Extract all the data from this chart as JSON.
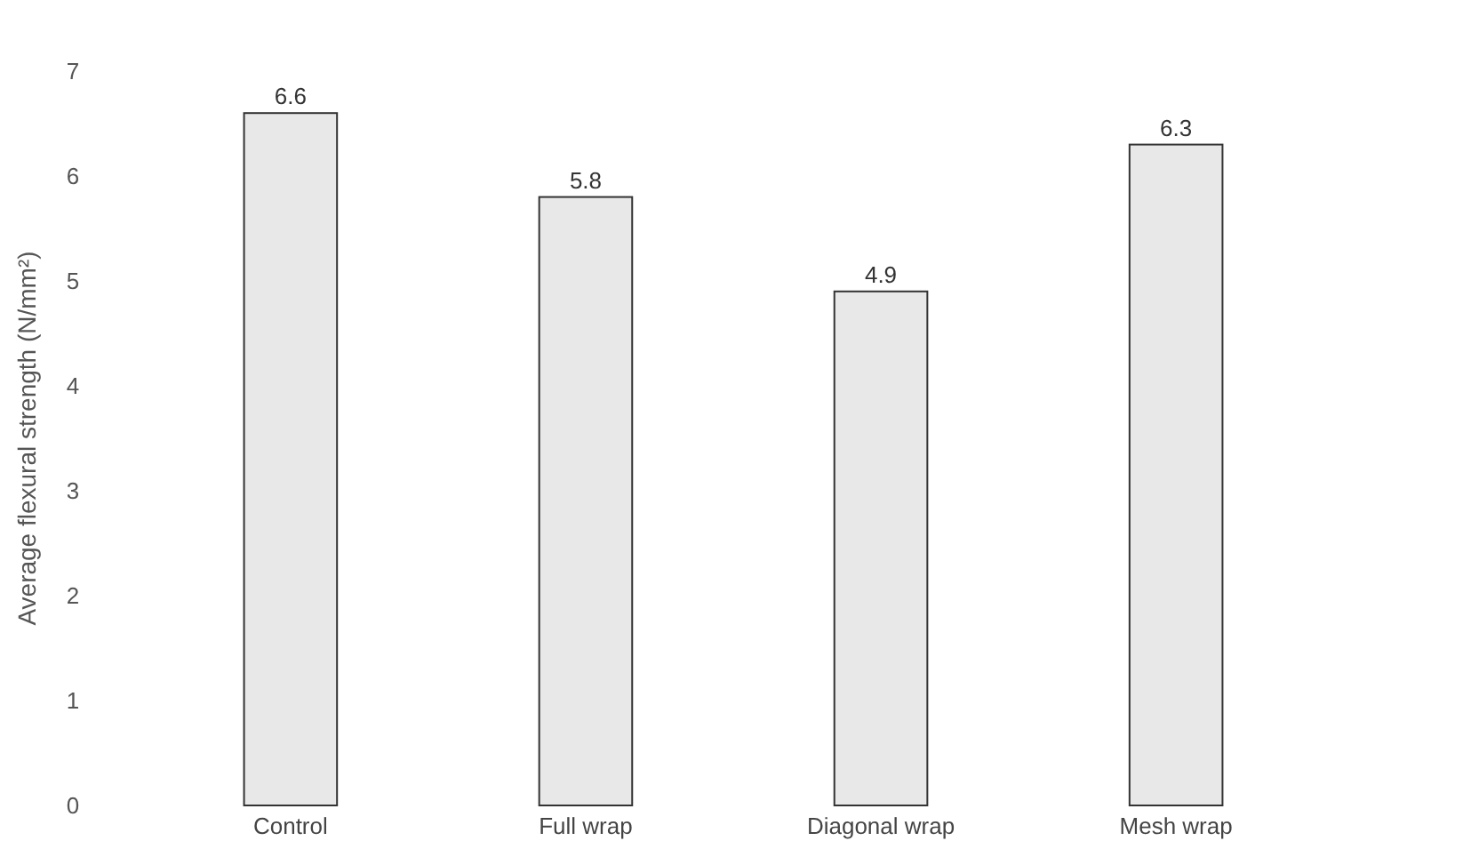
{
  "chart_data": {
    "type": "bar",
    "ylabel": "Average flexural strength (N/mm²)",
    "categories": [
      "Control",
      "Full wrap",
      "Diagonal wrap",
      "Mesh wrap"
    ],
    "values": [
      6.6,
      5.8,
      4.9,
      6.3
    ],
    "color": "#e8e8e8",
    "ylim": [
      0,
      7
    ],
    "yticks": [
      0,
      1,
      2,
      3,
      4,
      5,
      6,
      7
    ],
    "data_labels": true
  }
}
